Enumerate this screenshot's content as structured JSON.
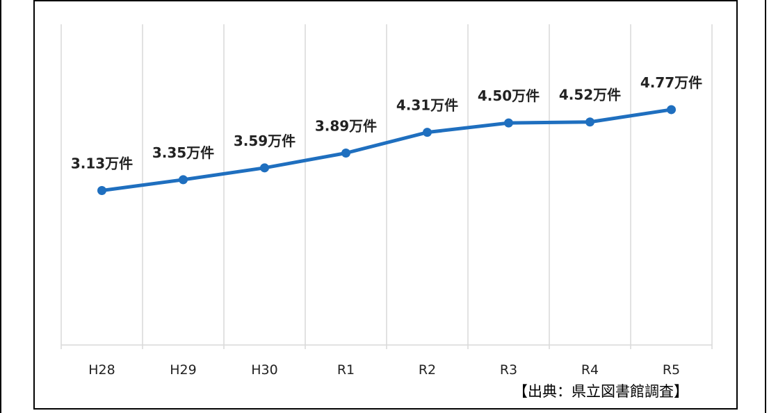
{
  "chart_data": {
    "type": "line",
    "categories": [
      "H28",
      "H29",
      "H30",
      "R1",
      "R2",
      "R3",
      "R4",
      "R5"
    ],
    "series": [
      {
        "values": [
          3.13,
          3.35,
          3.59,
          3.89,
          4.31,
          4.5,
          4.52,
          4.77
        ]
      }
    ],
    "data_labels": [
      "3.13万件",
      "3.35万件",
      "3.59万件",
      "3.89万件",
      "4.31万件",
      "4.50万件",
      "4.52万件",
      "4.77万件"
    ],
    "title": "",
    "xlabel": "",
    "ylabel": "",
    "ylim": [
      0,
      6.5
    ],
    "grid": "vertical",
    "line_color": "#1f6fbf",
    "grid_color": "#d9d9d9"
  },
  "source_note": "【出典：県立図書館調査】"
}
